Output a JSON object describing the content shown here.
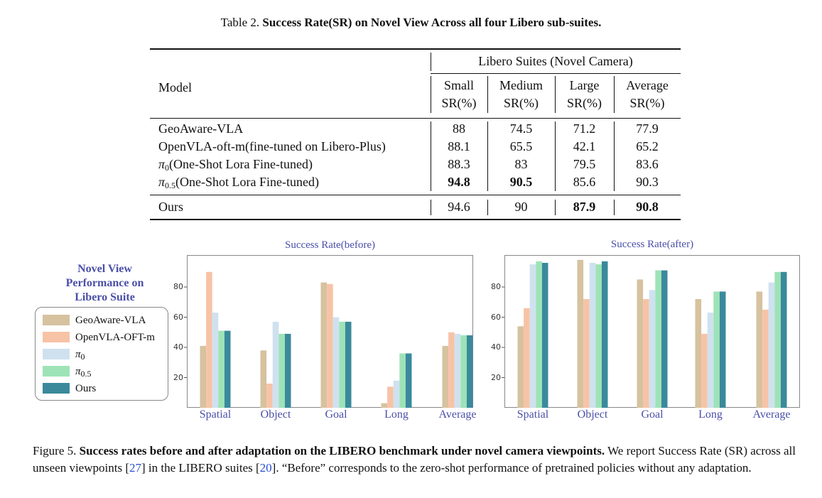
{
  "table": {
    "caption_prefix": "Table 2.",
    "caption_bold": "Success Rate(SR) on Novel View Across all four Libero sub-suites.",
    "group_header": "Libero Suites (Novel Camera)",
    "model_header": "Model",
    "columns": [
      {
        "line1": "Small",
        "line2": "SR(%)"
      },
      {
        "line1": "Medium",
        "line2": "SR(%)"
      },
      {
        "line1": "Large",
        "line2": "SR(%)"
      },
      {
        "line1": "Average",
        "line2": "SR(%)"
      }
    ],
    "rows": [
      {
        "model": "GeoAware-VLA",
        "values": [
          "88",
          "74.5",
          "71.2",
          "77.9"
        ]
      },
      {
        "model": "OpenVLA-oft-m(fine-tuned on Libero-Plus)",
        "values": [
          "88.1",
          "65.5",
          "42.1",
          "65.2"
        ]
      },
      {
        "model_symbol": "π",
        "model_sub": "0",
        "model_rest": "(One-Shot Lora Fine-tuned)",
        "values": [
          "88.3",
          "83",
          "79.5",
          "83.6"
        ]
      },
      {
        "model_symbol": "π",
        "model_sub": "0.5",
        "model_rest": "(One-Shot Lora Fine-tuned)",
        "values": [
          "94.8",
          "90.5",
          "85.6",
          "90.3"
        ]
      }
    ],
    "ours": {
      "model": "Ours",
      "values": [
        "94.6",
        "90",
        "87.9",
        "90.8"
      ]
    }
  },
  "legend": {
    "title_lines": [
      "Novel View",
      "Performance on",
      "Libero Suite"
    ],
    "items": [
      {
        "label": "GeoAware-VLA",
        "color": "#d6c29f"
      },
      {
        "label": "OpenVLA-OFT-m",
        "color": "#f7c3a6"
      },
      {
        "symbol": "π",
        "sub": "0",
        "color": "#cfe1ef"
      },
      {
        "symbol": "π",
        "sub": "0.5",
        "color": "#9ee3b7"
      },
      {
        "label": "Ours",
        "color": "#3a8a9c"
      }
    ]
  },
  "chart_data": [
    {
      "type": "bar",
      "title": "Success Rate(before)",
      "categories": [
        "Spatial",
        "Object",
        "Goal",
        "Long",
        "Average"
      ],
      "ylim": [
        0,
        100
      ],
      "yticks": [
        "20",
        "40",
        "60",
        "80"
      ],
      "series": [
        {
          "name": "GeoAware-VLA",
          "values": [
            41,
            38,
            83,
            3,
            41
          ]
        },
        {
          "name": "OpenVLA-OFT-m",
          "values": [
            90,
            16,
            82,
            14,
            50
          ]
        },
        {
          "name": "π0",
          "values": [
            63,
            57,
            60,
            18,
            49
          ]
        },
        {
          "name": "π0.5",
          "values": [
            51,
            49,
            57,
            36,
            48
          ]
        },
        {
          "name": "Ours",
          "values": [
            51,
            49,
            57,
            36,
            48
          ]
        }
      ]
    },
    {
      "type": "bar",
      "title": "Success Rate(after)",
      "categories": [
        "Spatial",
        "Object",
        "Goal",
        "Long",
        "Average"
      ],
      "ylim": [
        0,
        100
      ],
      "yticks": [
        "20",
        "40",
        "60",
        "80"
      ],
      "series": [
        {
          "name": "GeoAware-VLA",
          "values": [
            54,
            98,
            85,
            72,
            77
          ]
        },
        {
          "name": "OpenVLA-OFT-m",
          "values": [
            66,
            72,
            72,
            49,
            65
          ]
        },
        {
          "name": "π0",
          "values": [
            95,
            96,
            78,
            63,
            83
          ]
        },
        {
          "name": "π0.5",
          "values": [
            97,
            95,
            91,
            77,
            90
          ]
        },
        {
          "name": "Ours",
          "values": [
            96,
            97,
            91,
            77,
            90
          ]
        }
      ]
    }
  ],
  "figure": {
    "prefix": "Figure 5.",
    "bold": "Success rates before and after adaptation on the LIBERO benchmark under novel camera viewpoints.",
    "text1": "We report Success Rate (SR) across all unseen viewpoints [",
    "ref1": "27",
    "text2": "] in the LIBERO suites [",
    "ref2": "20",
    "text3": "]. “Before” corresponds to the zero-shot performance of pretrained policies without any adaptation."
  }
}
